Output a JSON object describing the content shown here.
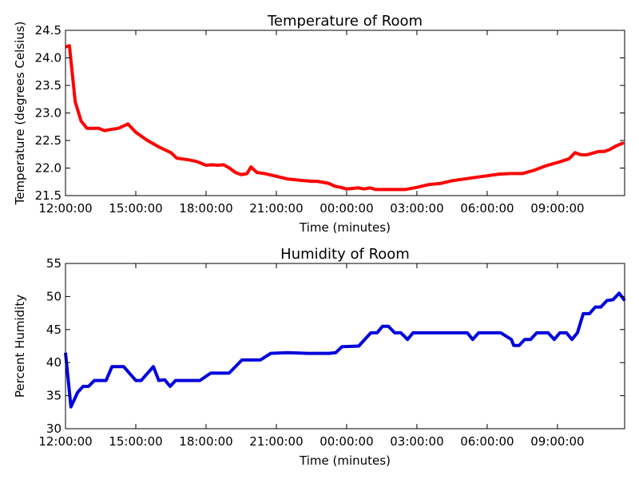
{
  "chart_data": [
    {
      "type": "line",
      "title": "Temperature of Room",
      "xlabel": "Time (minutes)",
      "ylabel": "Temperature (degrees Celsius)",
      "x": [
        0,
        10,
        25,
        40,
        55,
        85,
        100,
        115,
        135,
        160,
        180,
        210,
        240,
        270,
        285,
        315,
        335,
        360,
        375,
        390,
        405,
        420,
        435,
        450,
        465,
        475,
        490,
        510,
        540,
        570,
        600,
        630,
        645,
        660,
        675,
        690,
        705,
        720,
        750,
        765,
        780,
        795,
        840,
        870,
        900,
        930,
        960,
        990,
        1020,
        1050,
        1080,
        1110,
        1140,
        1170,
        1200,
        1230,
        1260,
        1290,
        1305,
        1320,
        1335,
        1365,
        1380,
        1395,
        1410,
        1430
      ],
      "series": [
        {
          "color": "#ff0000",
          "values": [
            24.2,
            24.22,
            23.2,
            22.85,
            22.72,
            22.72,
            22.68,
            22.7,
            22.72,
            22.8,
            22.65,
            22.5,
            22.38,
            22.28,
            22.18,
            22.15,
            22.12,
            22.05,
            22.06,
            22.05,
            22.06,
            22.0,
            21.92,
            21.88,
            21.9,
            22.02,
            21.92,
            21.9,
            21.85,
            21.8,
            21.78,
            21.76,
            21.76,
            21.74,
            21.72,
            21.67,
            21.65,
            21.62,
            21.64,
            21.62,
            21.64,
            21.61,
            21.61,
            21.61,
            21.65,
            21.7,
            21.72,
            21.77,
            21.8,
            21.83,
            21.86,
            21.89,
            21.9,
            21.9,
            21.96,
            22.04,
            22.1,
            22.17,
            22.28,
            22.24,
            22.24,
            22.3,
            22.3,
            22.34,
            22.4,
            22.46
          ]
        }
      ],
      "xlim": [
        0,
        1432
      ],
      "xticks": [
        {
          "value": 0,
          "label": "12:00:00"
        },
        {
          "value": 180,
          "label": "15:00:00"
        },
        {
          "value": 360,
          "label": "18:00:00"
        },
        {
          "value": 540,
          "label": "21:00:00"
        },
        {
          "value": 720,
          "label": "00:00:00"
        },
        {
          "value": 900,
          "label": "03:00:00"
        },
        {
          "value": 1080,
          "label": "06:00:00"
        },
        {
          "value": 1260,
          "label": "09:00:00"
        }
      ],
      "ylim": [
        21.5,
        24.5
      ],
      "yticks": [
        21.5,
        {
          "value": 22,
          "label": "22.0"
        },
        22.5,
        {
          "value": 23,
          "label": "23.0"
        },
        23.5,
        {
          "value": 24,
          "label": "24.0"
        },
        24.5
      ]
    },
    {
      "type": "line",
      "title": "Humidity of Room",
      "xlabel": "Time (minutes)",
      "ylabel": "Percent Humidity",
      "x": [
        0,
        14,
        31,
        45,
        59,
        74,
        104,
        119,
        149,
        180,
        194,
        225,
        239,
        254,
        268,
        282,
        344,
        372,
        419,
        452,
        499,
        526,
        569,
        620,
        675,
        692,
        708,
        751,
        782,
        798,
        812,
        827,
        843,
        859,
        876,
        890,
        937,
        1029,
        1043,
        1058,
        1115,
        1142,
        1148,
        1162,
        1176,
        1191,
        1207,
        1236,
        1252,
        1266,
        1283,
        1297,
        1311,
        1326,
        1342,
        1357,
        1371,
        1387,
        1402,
        1418,
        1432
      ],
      "series": [
        {
          "color": "#0000dd",
          "values": [
            41.5,
            33.3,
            35.5,
            36.4,
            36.4,
            37.3,
            37.3,
            39.4,
            39.4,
            37.3,
            37.3,
            39.4,
            37.3,
            37.4,
            36.4,
            37.3,
            37.3,
            38.4,
            38.4,
            40.4,
            40.4,
            41.4,
            41.5,
            41.4,
            41.4,
            41.5,
            42.4,
            42.5,
            44.5,
            44.5,
            45.5,
            45.5,
            44.5,
            44.5,
            43.5,
            44.5,
            44.5,
            44.5,
            43.5,
            44.5,
            44.5,
            43.5,
            42.6,
            42.6,
            43.5,
            43.5,
            44.5,
            44.5,
            43.5,
            44.5,
            44.5,
            43.5,
            44.5,
            47.4,
            47.4,
            48.4,
            48.4,
            49.4,
            49.5,
            50.5,
            49.4
          ]
        }
      ],
      "xlim": [
        0,
        1432
      ],
      "xticks": [
        {
          "value": 0,
          "label": "12:00:00"
        },
        {
          "value": 180,
          "label": "15:00:00"
        },
        {
          "value": 360,
          "label": "18:00:00"
        },
        {
          "value": 540,
          "label": "21:00:00"
        },
        {
          "value": 720,
          "label": "00:00:00"
        },
        {
          "value": 900,
          "label": "03:00:00"
        },
        {
          "value": 1080,
          "label": "06:00:00"
        },
        {
          "value": 1260,
          "label": "09:00:00"
        }
      ],
      "ylim": [
        30,
        55
      ],
      "yticks": [
        30,
        35,
        40,
        45,
        50,
        55
      ]
    }
  ]
}
